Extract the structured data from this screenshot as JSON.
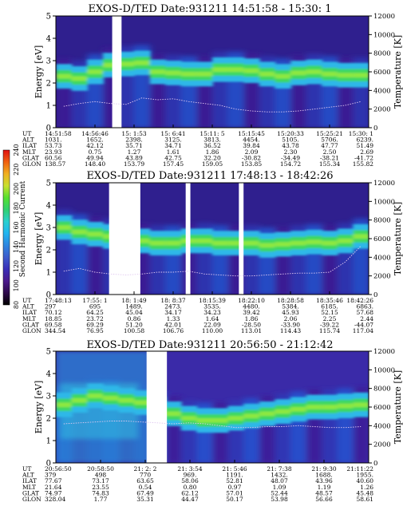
{
  "chart_data": {
    "type": "heatmap",
    "colorbar": {
      "label": "Second Harmonic Current",
      "ticks": [
        80,
        100,
        120,
        140,
        160,
        180,
        200,
        220,
        240
      ],
      "range": [
        80,
        240
      ],
      "colors": [
        "#000000",
        "#2d0a4a",
        "#4b1a8c",
        "#3a2fb8",
        "#3e5ccc",
        "#2e86e0",
        "#22b4f0",
        "#2ad0d0",
        "#30d070",
        "#55e030",
        "#c8e030",
        "#f0b020",
        "#f06010",
        "#e01010"
      ]
    },
    "panels": [
      {
        "title": "EXOS-D/TED  Date:931211  14:51:58 - 15:30: 1",
        "ylabel": "Energy [eV]",
        "ylabel2": "Temperature [K]",
        "yticks": [
          "0",
          "1",
          "2",
          "3",
          "4",
          "5"
        ],
        "y2ticks": [
          "0",
          "2000",
          "4000",
          "6000",
          "8000",
          "10000",
          "12000"
        ],
        "ylim": [
          0,
          5
        ],
        "y2lim": [
          0,
          12000
        ],
        "gaps": [
          [
            0.18,
            0.21
          ]
        ],
        "band_energy": [
          2.3,
          2.2,
          2.5,
          2.8,
          2.85,
          2.9,
          2.5,
          2.45,
          2.4,
          2.4,
          2.6,
          2.6,
          2.55,
          2.4,
          2.3,
          2.45,
          2.5,
          2.4,
          2.35,
          2.35
        ],
        "temperature": [
          2300,
          2600,
          2800,
          2600,
          2500,
          3200,
          3000,
          3100,
          2800,
          2600,
          2400,
          2000,
          1800,
          1700,
          1700,
          1800,
          2000,
          2200,
          2400,
          2800
        ],
        "ephemeris": {
          "labels": [
            "UT",
            "ALT",
            "ILAT",
            "MLT",
            "GLAT",
            "GLON"
          ],
          "columns": [
            [
              "14:51:58",
              "1031.",
              "53.73",
              "23.93",
              "60.56",
              "138.57"
            ],
            [
              "14:56:46",
              "1652.",
              "42.12",
              "0.75",
              "49.94",
              "148.40"
            ],
            [
              "15: 1:53",
              "2398.",
              "35.71",
              "1.27",
              "43.89",
              "153.79"
            ],
            [
              "15: 6:41",
              "3125.",
              "34.71",
              "1.61",
              "42.75",
              "157.45"
            ],
            [
              "15:11: 5",
              "3813.",
              "36.52",
              "1.86",
              "32.20",
              "159.05"
            ],
            [
              "15:15:45",
              "4454.",
              "39.84",
              "2.09",
              "-30.82",
              "153.85"
            ],
            [
              "15:20:33",
              "5105.",
              "43.78",
              "2.30",
              "-34.49",
              "154.72"
            ],
            [
              "15:25:21",
              "5706.",
              "47.77",
              "2.50",
              "-38.21",
              "155.34"
            ],
            [
              "15:30: 1",
              "6239.",
              "51.49",
              "2.69",
              "-41.72",
              "155.82"
            ]
          ]
        }
      },
      {
        "title": "EXOS-D/TED  Date:931211  17:48:13 - 18:42:26",
        "ylabel": "Energy [eV]",
        "ylabel2": "Temperature [K]",
        "yticks": [
          "0",
          "1",
          "2",
          "3",
          "4",
          "5"
        ],
        "y2ticks": [
          "0",
          "2000",
          "4000",
          "6000",
          "8000",
          "10000",
          "12000"
        ],
        "ylim": [
          0,
          5
        ],
        "y2lim": [
          0,
          12000
        ],
        "gaps": [
          [
            0.17,
            0.27
          ],
          [
            0.415,
            0.43
          ],
          [
            0.585,
            0.6
          ]
        ],
        "band_energy": [
          3.0,
          2.8,
          2.7,
          2.6,
          2.5,
          2.4,
          2.3,
          2.3,
          2.4,
          2.4,
          2.3,
          2.3,
          2.3,
          2.2,
          2.25,
          2.3,
          2.35,
          2.3,
          2.4,
          2.6
        ],
        "temperature": [
          2500,
          2800,
          2400,
          2200,
          2100,
          2200,
          2400,
          2400,
          2500,
          2200,
          2100,
          2000,
          2000,
          2100,
          2200,
          2300,
          2300,
          2400,
          3500,
          5200
        ],
        "ephemeris": {
          "labels": [
            "UT",
            "ALT",
            "ILAT",
            "MLT",
            "GLAT",
            "GLON"
          ],
          "columns": [
            [
              "17:48:13",
              "297",
              "70.12",
              "18.85",
              "69.58",
              "344.54"
            ],
            [
              "17:55: 1",
              "695",
              "64.25",
              "23.72",
              "69.29",
              "76.95"
            ],
            [
              "18: 1:49",
              "1489.",
              "45.04",
              "0.86",
              "51.20",
              "100.58"
            ],
            [
              "18: 8:37",
              "2473.",
              "34.17",
              "1.33",
              "42.01",
              "106.76"
            ],
            [
              "18:15:39",
              "3535.",
              "34.23",
              "1.64",
              "22.09",
              "110.00"
            ],
            [
              "18:22:10",
              "4480.",
              "39.42",
              "1.86",
              "-28.50",
              "113.01"
            ],
            [
              "18:28:58",
              "5384.",
              "45.93",
              "2.06",
              "-33.90",
              "114.43"
            ],
            [
              "18:35:46",
              "6185.",
              "52.15",
              "2.25",
              "-39.22",
              "115.74"
            ],
            [
              "18:42:26",
              "6863.",
              "57.68",
              "2.44",
              "-44.07",
              "117.04"
            ]
          ]
        }
      },
      {
        "title": "EXOS-D/TED  Date:931211  20:56:50 - 21:12:42",
        "ylabel": "Energy [eV]",
        "ylabel2": "Temperature [K]",
        "yticks": [
          "0",
          "1",
          "2",
          "3",
          "4",
          "5"
        ],
        "y2ticks": [
          "0",
          "2000",
          "4000",
          "6000",
          "8000",
          "10000",
          "12000"
        ],
        "ylim": [
          0,
          5
        ],
        "y2lim": [
          0,
          12000
        ],
        "gaps": [
          [
            0.29,
            0.355
          ]
        ],
        "band_energy": [
          2.6,
          2.8,
          3.0,
          2.9,
          2.8,
          2.7,
          2.4,
          2.2,
          2.0,
          1.9,
          1.9,
          2.0,
          2.1,
          2.2,
          2.3,
          2.4,
          2.5,
          2.5,
          2.55,
          2.6
        ],
        "temperature": [
          4200,
          4300,
          4400,
          4500,
          4500,
          4400,
          4300,
          4200,
          4300,
          4200,
          4000,
          3800,
          3800,
          3900,
          3900,
          4000,
          3900,
          3800,
          3800,
          3900
        ],
        "ephemeris": {
          "labels": [
            "UT",
            "ALT",
            "ILAT",
            "MLT",
            "GLAT",
            "GLON"
          ],
          "columns": [
            [
              "20:56:50",
              "379",
              "77.67",
              "21.64",
              "74.97",
              "328.04"
            ],
            [
              "20:58:50",
              "498",
              "73.17",
              "23.55",
              "74.83",
              "1.77"
            ],
            [
              "21: 2: 2",
              "770",
              "63.65",
              "0.54",
              "67.49",
              "35.31"
            ],
            [
              "21: 3:54",
              "969.",
              "58.06",
              "0.80",
              "62.12",
              "44.47"
            ],
            [
              "21: 5:46",
              "1191.",
              "52.81",
              "0.97",
              "57.01",
              "50.17"
            ],
            [
              "21: 7:38",
              "1432.",
              "48.07",
              "1.09",
              "52.44",
              "53.98"
            ],
            [
              "21: 9:30",
              "1688.",
              "43.96",
              "1.19",
              "48.57",
              "56.66"
            ],
            [
              "21:11:22",
              "1955.",
              "40.60",
              "1.26",
              "45.48",
              "58.61"
            ]
          ]
        }
      }
    ]
  }
}
